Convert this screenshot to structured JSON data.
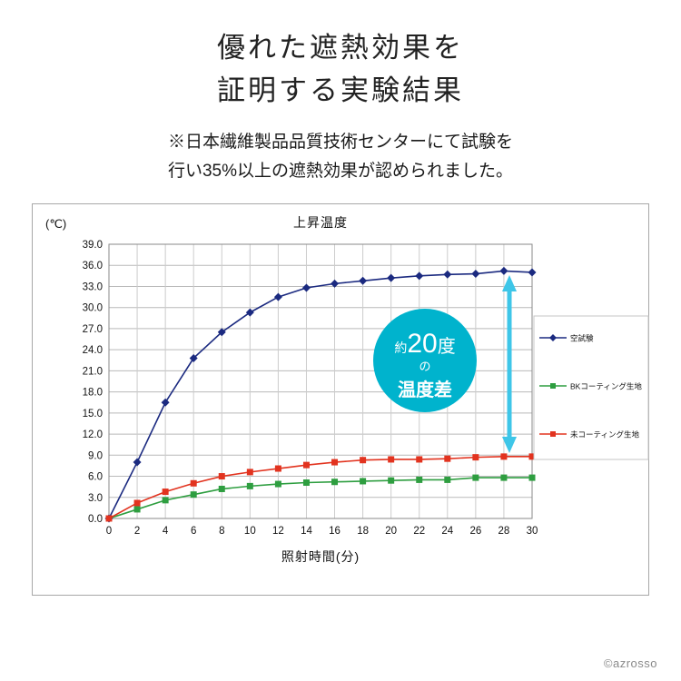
{
  "page": {
    "title_line1": "優れた遮熱効果を",
    "title_line2": "証明する実験結果",
    "subtitle_line1": "※日本繊維製品品質技術センターにて試験を",
    "subtitle_line2": "行い35%以上の遮熱効果が認められました。",
    "copyright": "©azrosso"
  },
  "chart_data": {
    "type": "line",
    "title": "上昇温度",
    "y_unit_label": "(℃)",
    "xlabel": "照射時間(分)",
    "x": [
      0,
      2,
      4,
      6,
      8,
      10,
      12,
      14,
      16,
      18,
      20,
      22,
      24,
      26,
      28,
      30
    ],
    "ylim": [
      0,
      39
    ],
    "ytick_step": 3,
    "grid": true,
    "legend_position": "right",
    "series": [
      {
        "name": "空試験",
        "color": "#1b2a80",
        "marker": "diamond",
        "values": [
          0,
          8.0,
          16.5,
          22.8,
          26.5,
          29.3,
          31.5,
          32.8,
          33.4,
          33.8,
          34.2,
          34.5,
          34.7,
          34.8,
          35.2,
          35.0
        ]
      },
      {
        "name": "BKコーティング生地",
        "color": "#2e9e40",
        "marker": "square",
        "values": [
          0,
          1.3,
          2.6,
          3.4,
          4.2,
          4.6,
          4.9,
          5.1,
          5.2,
          5.3,
          5.4,
          5.5,
          5.5,
          5.8,
          5.8,
          5.8
        ]
      },
      {
        "name": "未コーティング生地",
        "color": "#e2331f",
        "marker": "square",
        "values": [
          0,
          2.2,
          3.8,
          5.0,
          6.0,
          6.6,
          7.1,
          7.6,
          8.0,
          8.3,
          8.4,
          8.4,
          8.5,
          8.7,
          8.8,
          8.8
        ]
      }
    ],
    "annotation": {
      "prefix": "約",
      "value": "20",
      "unit": "度",
      "particle": "の",
      "label": "温度差",
      "circle_color": "#00b3cd",
      "arrow_color": "#3ec6e8",
      "text_color": "#ffffff"
    }
  }
}
